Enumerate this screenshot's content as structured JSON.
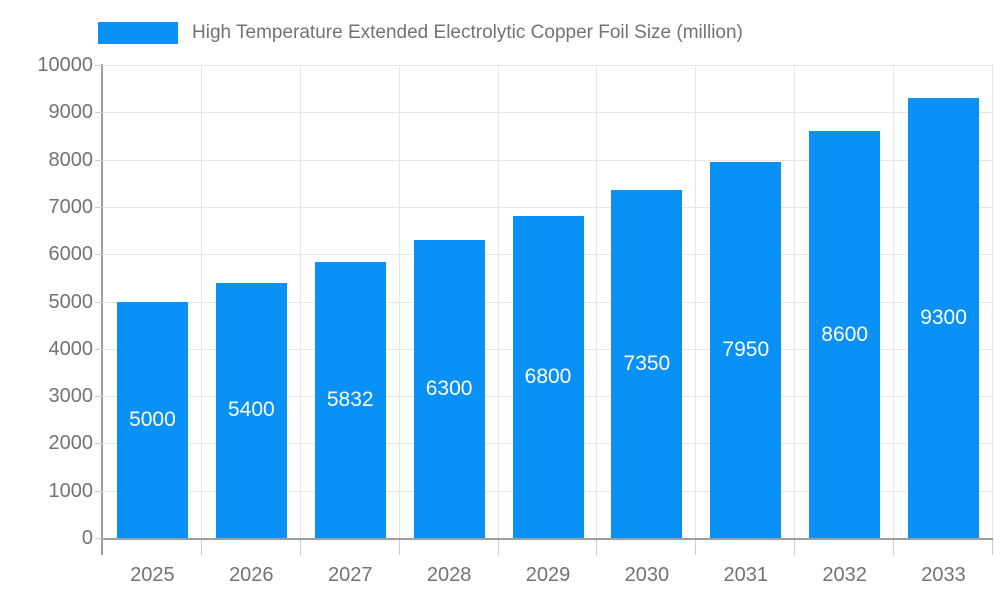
{
  "legend": {
    "label": "High Temperature Extended Electrolytic Copper Foil Size (million)"
  },
  "chart_data": {
    "type": "bar",
    "title": "High Temperature Extended Electrolytic Copper Foil Size (million)",
    "categories": [
      "2025",
      "2026",
      "2027",
      "2028",
      "2029",
      "2030",
      "2031",
      "2032",
      "2033"
    ],
    "values": [
      5000,
      5400,
      5832,
      6300,
      6800,
      7350,
      7950,
      8600,
      9300
    ],
    "xlabel": "",
    "ylabel": "",
    "ylim": [
      0,
      10000
    ],
    "ytick_step": 1000,
    "grid": true,
    "legend_position": "top",
    "bar_labels": "inside-center",
    "colors": {
      "bar": "#0991f5",
      "bar_label_text": "#ffffff",
      "grid_line": "#e6e6e6",
      "axis_line": "#9e9e9e",
      "tick_mark": "#cccccc",
      "label_text": "#737373",
      "background": "#ffffff"
    }
  }
}
